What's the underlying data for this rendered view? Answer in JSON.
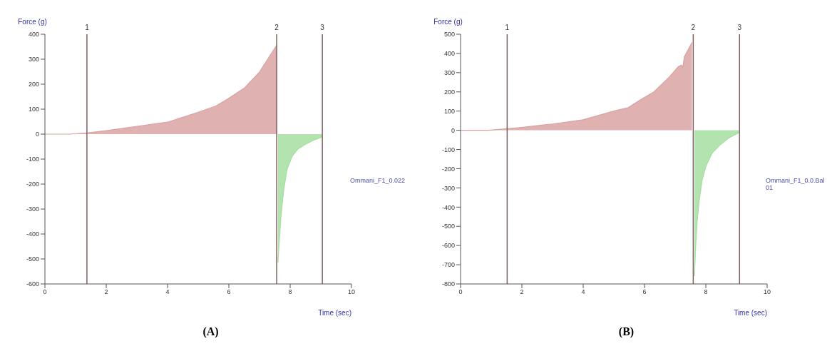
{
  "chart_data": [
    {
      "type": "area",
      "xlabel": "Time (sec)",
      "ylabel": "Force (g)",
      "xlim": [
        0,
        10
      ],
      "xticks": [
        0,
        2,
        4,
        6,
        8,
        10
      ],
      "ylim": [
        -600,
        400
      ],
      "yticks": [
        -600,
        -500,
        -400,
        -300,
        -200,
        -100,
        0,
        100,
        200,
        300,
        400
      ],
      "grid": false,
      "series": [
        {
          "color": "#d9a3a3",
          "x": [
            0,
            0.8,
            1.37,
            2,
            3,
            4,
            5,
            5.58,
            5.96,
            6.5,
            7,
            7.56
          ],
          "values": [
            0,
            0,
            5,
            14,
            31,
            48,
            88,
            113,
            141,
            184,
            249,
            356
          ]
        },
        {
          "color": "#a6dea0",
          "x": [
            7.6,
            7.65,
            7.7,
            7.79,
            7.9,
            8.06,
            8.25,
            8.48,
            8.75,
            9.05
          ],
          "values": [
            -514,
            -420,
            -330,
            -223,
            -140,
            -90,
            -60,
            -42,
            -25,
            -11
          ]
        }
      ],
      "ref_lines": [
        {
          "axis": "x",
          "value": 1.37
        },
        {
          "axis": "x",
          "value": 7.56
        },
        {
          "axis": "x",
          "value": 9.05
        }
      ],
      "annotations": [
        "Ommani_F1_0.022",
        "(A)",
        {
          "text": "1",
          "x": 1.37,
          "y": 400
        },
        {
          "text": "2",
          "x": 7.56,
          "y": 400
        },
        {
          "text": "3",
          "x": 9.05,
          "y": 400
        }
      ]
    },
    {
      "type": "area",
      "xlabel": "Time (sec)",
      "ylabel": "Force (g)",
      "xlim": [
        0,
        10
      ],
      "xticks": [
        0,
        2,
        4,
        6,
        8,
        10
      ],
      "ylim": [
        -800,
        500
      ],
      "yticks": [
        -800,
        -700,
        -600,
        -500,
        -400,
        -300,
        -200,
        -100,
        0,
        100,
        200,
        300,
        400,
        500
      ],
      "grid": false,
      "series": [
        {
          "color": "#d9a3a3",
          "x": [
            0,
            0.9,
            1.52,
            2,
            3,
            4,
            5,
            5.47,
            5.9,
            6.3,
            6.8,
            7.1,
            7.21,
            7.25,
            7.3,
            7.55
          ],
          "values": [
            0,
            0,
            8,
            15,
            33,
            55,
            100,
            118,
            162,
            199,
            276,
            331,
            339,
            327,
            383,
            457
          ]
        },
        {
          "color": "#a6dea0",
          "x": [
            7.63,
            7.67,
            7.72,
            7.78,
            7.88,
            8.0,
            8.2,
            8.46,
            8.75,
            9.1
          ],
          "values": [
            -759,
            -600,
            -470,
            -372,
            -260,
            -188,
            -120,
            -77,
            -40,
            -11
          ]
        }
      ],
      "ref_lines": [
        {
          "axis": "x",
          "value": 1.52
        },
        {
          "axis": "x",
          "value": 7.59
        },
        {
          "axis": "x",
          "value": 9.1
        }
      ],
      "annotations": [
        "Ommani_F1_0.0.Bal 01",
        "(B)",
        {
          "text": "1",
          "x": 1.52,
          "y": 500
        },
        {
          "text": "2",
          "x": 7.59,
          "y": 500
        },
        {
          "text": "3",
          "x": 9.1,
          "y": 500
        }
      ]
    }
  ]
}
